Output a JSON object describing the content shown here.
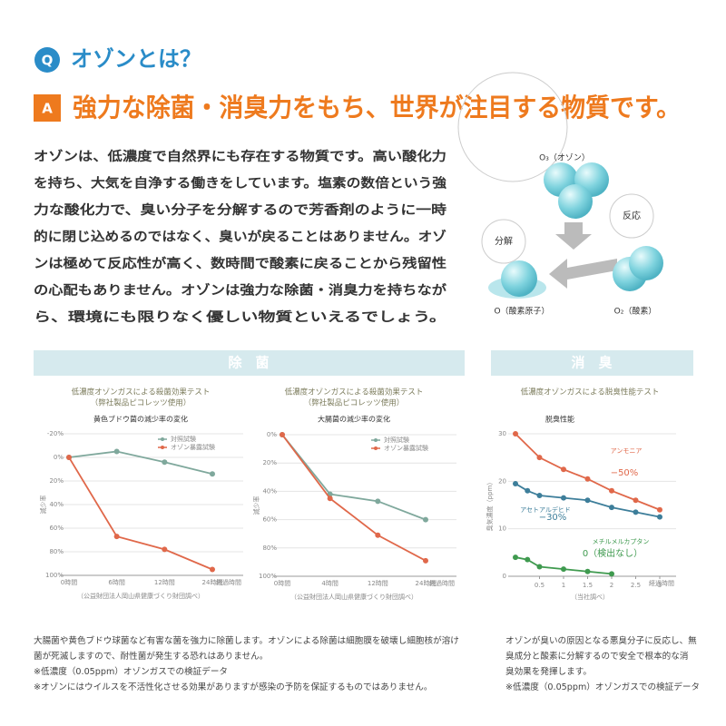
{
  "header": {
    "q_mark": "Q",
    "question": "オゾンとは？",
    "a_mark": "A",
    "answer": "強力な除菌・消臭力をもち、世界が注目する物質です。"
  },
  "body": {
    "lines": [
      "オゾンは、低濃度で自然界にも存在する物質です。高い酸化力",
      "を持ち、大気を自浄する働きをしています。塩素の数倍という強",
      "力な酸化力で、臭い分子を分解するので芳香剤のように一時",
      "的に閉じ込めるのではなく、臭いが戻ることはありません。オゾ",
      "ンは極めて反応性が高く、数時間で酸素に戻ることから残留性",
      "の心配もありません。オゾンは強力な除菌・消臭力を持ちなが",
      "ら、環境にも限りなく優しい物質といえるでしょう。"
    ]
  },
  "diagram": {
    "ozone": "O₃（オゾン）",
    "reaction": "反応",
    "decompose": "分解",
    "oxygen_atom": "O（酸素原子）",
    "oxygen": "O₂（酸素）"
  },
  "sections": {
    "sterilize": "除　菌",
    "deodorize": "消　臭"
  },
  "chart_data": [
    {
      "type": "line",
      "title": "低濃度オゾンガスによる殺菌効果テスト",
      "title2": "（弊社製品ピコレッツ使用）",
      "subtitle": "黄色ブドウ菌の減少率の変化",
      "y_label": "減少率",
      "x_label": "経過時間",
      "note": "（公益財団法人岡山県健康づくり財団調べ）",
      "categories": [
        "0時間",
        "6時間",
        "12時間",
        "24時間"
      ],
      "series": [
        {
          "name": "対照試験",
          "color": "#7fa89c",
          "values": [
            0,
            -5,
            4,
            14
          ]
        },
        {
          "name": "オゾン暴露試験",
          "color": "#e0684a",
          "values": [
            0,
            67,
            78,
            95
          ]
        }
      ],
      "ylim": [
        100,
        -20
      ],
      "yticks": [
        {
          "value": -20,
          "label": "-20%"
        },
        {
          "value": 0,
          "label": "0%"
        },
        {
          "value": 20,
          "label": "20%"
        },
        {
          "value": 40,
          "label": "40%"
        },
        {
          "value": 60,
          "label": "60%"
        },
        {
          "value": 80,
          "label": "80%"
        },
        {
          "value": 100,
          "label": "100%"
        }
      ],
      "grid": true,
      "legend": "upper right"
    },
    {
      "type": "line",
      "title": "低濃度オゾンガスによる殺菌効果テスト",
      "title2": "（弊社製品ピコレッツ使用）",
      "subtitle": "大腸菌の減少率の変化",
      "y_label": "減少率",
      "x_label": "経過時間",
      "note": "（公益財団法人岡山県健康づくり財団調べ）",
      "categories": [
        "0時間",
        "4時間",
        "12時間",
        "24時間"
      ],
      "series": [
        {
          "name": "対照試験",
          "color": "#7fa89c",
          "values": [
            0,
            42,
            47,
            60
          ]
        },
        {
          "name": "オゾン暴露試験",
          "color": "#e0684a",
          "values": [
            0,
            45,
            71,
            89
          ]
        }
      ],
      "ylim": [
        100,
        0
      ],
      "yticks": [
        {
          "value": 0,
          "label": "0%"
        },
        {
          "value": 20,
          "label": "20%"
        },
        {
          "value": 40,
          "label": "40%"
        },
        {
          "value": 60,
          "label": "60%"
        },
        {
          "value": 80,
          "label": "80%"
        },
        {
          "value": 100,
          "label": "100%"
        }
      ],
      "grid": true,
      "legend": "upper right"
    },
    {
      "type": "line",
      "title": "低濃度オゾンガスによる脱臭性能テスト",
      "subtitle": "脱臭性能",
      "y_label": "臭気濃度（ppm）",
      "x_label": "経過時間",
      "note": "（当社調べ）",
      "series": [
        {
          "name": "アンモニア",
          "color": "#e0684a",
          "x": [
            0,
            0.5,
            1,
            1.5,
            2,
            2.5,
            3
          ],
          "values": [
            30,
            25,
            22.5,
            20.5,
            18,
            16,
            14
          ]
        },
        {
          "name": "アセトアルデヒド",
          "color": "#3d7e9a",
          "x": [
            0,
            0.25,
            0.5,
            1,
            1.5,
            2,
            2.5,
            3
          ],
          "values": [
            19.5,
            18,
            17,
            16.5,
            16,
            14.5,
            13.5,
            12.5
          ]
        },
        {
          "name": "メチルメルカプタン",
          "color": "#3f9a4f",
          "x": [
            0,
            0.25,
            0.5,
            1,
            1.5,
            2
          ],
          "values": [
            4,
            3.5,
            2,
            1.5,
            1,
            0.5
          ]
        }
      ],
      "annotations": [
        "−50%",
        "−30%",
        "0（検出なし）"
      ],
      "xlim": [
        0,
        3
      ],
      "xticks": [
        0.5,
        1,
        1.5,
        2,
        2.5,
        3
      ],
      "ylim": [
        0,
        30
      ],
      "yticks": [
        0,
        10,
        20,
        30
      ],
      "grid": true
    }
  ],
  "footer": {
    "left": [
      "大腸菌や黄色ブドウ球菌など有害な菌を強力に除菌します。オゾンによる除菌は細胞膜を破壊し細胞核が溶け",
      "菌が死滅しますので、耐性菌が発生する恐れはありません。",
      "※低濃度（0.05ppm）オゾンガスでの検証データ",
      "※オゾンにはウイルスを不活性化させる効果がありますが感染の予防を保証するものではありません。"
    ],
    "right": [
      "オゾンが臭いの原因となる悪臭分子に反応し、無",
      "臭成分と酸素に分解するので安全で根本的な消",
      "臭効果を発揮します。",
      "※低濃度（0.05ppm）オゾンガスでの検証データ"
    ]
  }
}
